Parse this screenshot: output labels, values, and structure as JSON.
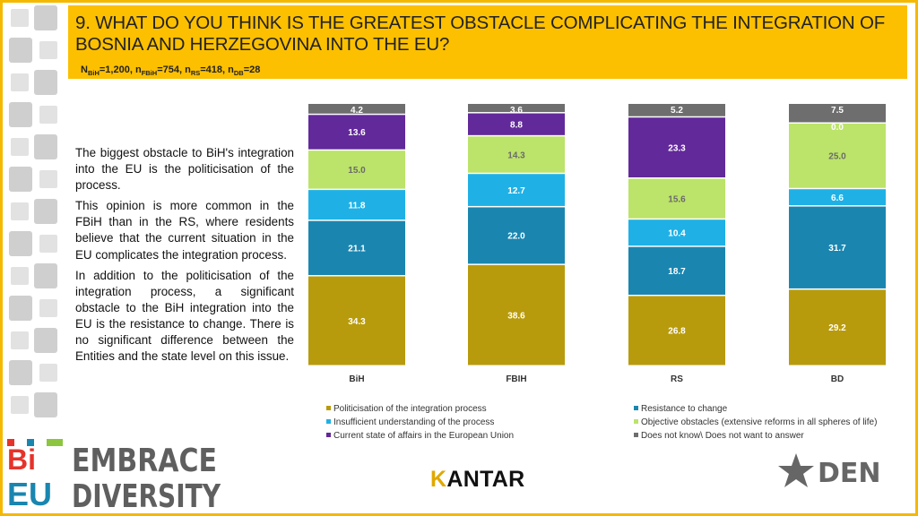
{
  "header": {
    "title": "9. WHAT DO YOU THINK IS THE GREATEST OBSTACLE COMPLICATING THE INTEGRATION OF BOSNIA AND HERZEGOVINA INTO THE EU?",
    "n_parts": [
      {
        "label": "N",
        "sub": "BiH",
        "value": "=1,200, "
      },
      {
        "label": "n",
        "sub": "FBiH",
        "value": "=754, "
      },
      {
        "label": "n",
        "sub": "RS",
        "value": "=418, "
      },
      {
        "label": "n",
        "sub": "DB",
        "value": "=28"
      }
    ]
  },
  "description": [
    "The biggest obstacle to BiH's integration into the EU is the politicisation of the process.",
    "This opinion is more common in the FBiH than in the RS, where residents believe that the current situation in the EU complicates the integration process.",
    "In addition to the politicisation of the integration process, a significant obstacle to the BiH integration into the EU is the resistance to change. There is no significant difference between the Entities and the state level on this issue."
  ],
  "chart_data": {
    "type": "bar",
    "stacked": true,
    "orientation": "vertical",
    "categories": [
      "BiH",
      "FBIH",
      "RS",
      "BD"
    ],
    "series": [
      {
        "name": "Politicisation of the integration process",
        "color": "#b89b0c",
        "values": [
          34.3,
          38.6,
          26.8,
          29.2
        ],
        "labels": [
          "34.3",
          "38.6",
          "26.8",
          "29.2"
        ]
      },
      {
        "name": "Resistance to change",
        "color": "#1a86b0",
        "values": [
          21.1,
          22.0,
          18.7,
          31.7
        ],
        "labels": [
          "21.1",
          "22.0",
          "18.7",
          "31.7"
        ]
      },
      {
        "name": "Insufficient understanding of the process",
        "color": "#1fb1e6",
        "values": [
          11.8,
          12.7,
          10.4,
          6.6
        ],
        "labels": [
          "11.8",
          "12.7",
          "10.4",
          "6.6"
        ]
      },
      {
        "name": "Objective obstacles (extensive reforms in all spheres of life)",
        "color": "#bce36a",
        "values": [
          15.0,
          14.3,
          15.6,
          25.0
        ],
        "labels": [
          "15.0",
          "14.3",
          "15.6",
          "25.0"
        ]
      },
      {
        "name": "Current state of affairs in the European Union",
        "color": "#62299a",
        "values": [
          13.6,
          8.8,
          23.3,
          0.0
        ],
        "labels": [
          "13.6",
          "8.8",
          "23.3",
          "0.0"
        ]
      },
      {
        "name": "Does not know\\ Does not want to answer",
        "color": "#6e6e6e",
        "values": [
          4.2,
          3.6,
          5.2,
          7.5
        ],
        "labels": [
          "4.2",
          "3.6",
          "5.2",
          "7.5"
        ]
      }
    ],
    "legend_order": [
      0,
      1,
      2,
      3,
      4,
      5
    ],
    "ylim": [
      0,
      100
    ]
  },
  "logos": {
    "left_top": "Bi",
    "left_bottom": "EU",
    "left_words": [
      "EMBRACE",
      "DIVERSITY"
    ],
    "kantar_k": "K",
    "kantar_rest": "ANTAR",
    "den": "DEN"
  }
}
